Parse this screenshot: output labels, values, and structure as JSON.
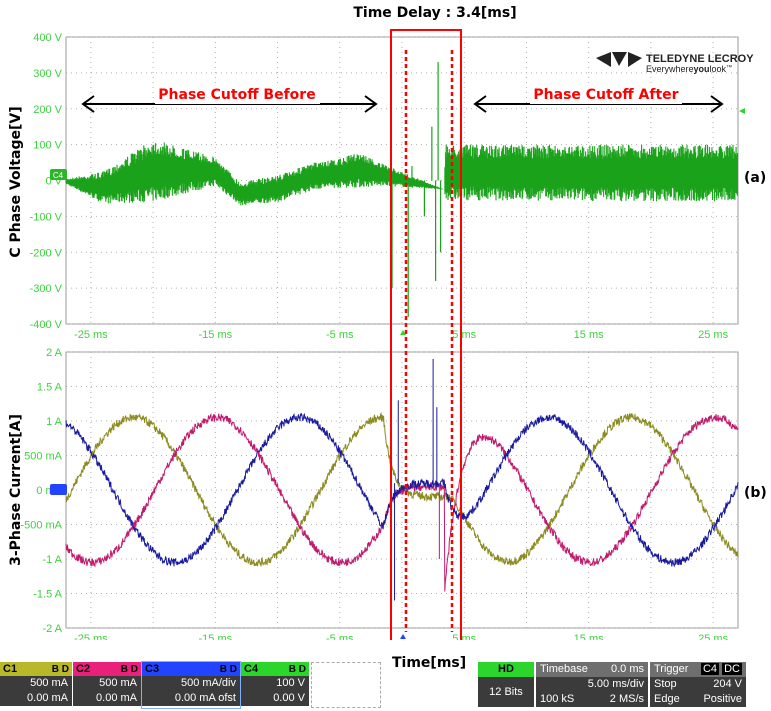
{
  "page_title": "Time Delay : 3.4[ms]",
  "colors": {
    "voltage": "#1aa31a",
    "c1": "#8b8b1f",
    "c2": "#c01a6e",
    "c3": "#1a1a9e",
    "grid": "#b0b0b0",
    "axis_label": "#3fd23f",
    "annot_red": "#ff0000"
  },
  "logo": {
    "name": "TELEDYNE LECROY",
    "tagline_pre": "Everywhere",
    "tagline_bold": "you",
    "tagline_post": "look",
    "tm": "™"
  },
  "annotations": {
    "before": "Phase Cutoff Before",
    "after": "Phase Cutoff After",
    "label_a": "(a)",
    "label_b": "(b)",
    "xlabel": "Time[ms]"
  },
  "chart_data": [
    {
      "type": "line",
      "title": "",
      "ylabel": "C Phase Voltage[V]",
      "xlabel": "",
      "xlim": [
        -27,
        27
      ],
      "ylim": [
        -400,
        400
      ],
      "xticks": [
        "-25 ms",
        "-15 ms",
        "-5 ms",
        "5 ms",
        "15 ms",
        "25 ms"
      ],
      "xtick_values": [
        -25,
        -15,
        -5,
        5,
        15,
        25
      ],
      "yticks": [
        "400 V",
        "300 V",
        "200 V",
        "100 V",
        "0 V",
        "-100 V",
        "-200 V",
        "-300 V",
        "-400 V"
      ],
      "ytick_values": [
        400,
        300,
        200,
        100,
        0,
        -100,
        -200,
        -300,
        -400
      ],
      "grid": true,
      "series": [
        {
          "name": "C4",
          "envelope": [
            {
              "x": -27,
              "hi": 5,
              "lo": -10
            },
            {
              "x": -24,
              "hi": 25,
              "lo": -65
            },
            {
              "x": -20,
              "hi": 115,
              "lo": -60
            },
            {
              "x": -15,
              "hi": 65,
              "lo": -15
            },
            {
              "x": -13,
              "hi": -5,
              "lo": -70
            },
            {
              "x": -10,
              "hi": 15,
              "lo": -60
            },
            {
              "x": -7,
              "hi": 50,
              "lo": -25
            },
            {
              "x": -5,
              "hi": 60,
              "lo": -20
            },
            {
              "x": -3.5,
              "hi": 80,
              "lo": -20
            },
            {
              "x": -1.5,
              "hi": 45,
              "lo": -15
            },
            {
              "x": 3.4,
              "hi": -25,
              "lo": -25
            },
            {
              "x": 3.5,
              "hi": 100,
              "lo": -55
            },
            {
              "x": 27,
              "hi": 100,
              "lo": -60
            }
          ]
        }
      ],
      "markers": {
        "trigger_level_V": 204,
        "zero_label": "C4"
      }
    },
    {
      "type": "line",
      "title": "",
      "ylabel": "3-Phase Current[A]",
      "xlabel": "Time[ms]",
      "xlim": [
        -27,
        27
      ],
      "ylim": [
        -2,
        2
      ],
      "xticks": [
        "-25 ms",
        "-15 ms",
        "-5 ms",
        "5 ms",
        "15 ms",
        "25 ms"
      ],
      "xtick_values": [
        -25,
        -15,
        -5,
        5,
        15,
        25
      ],
      "yticks": [
        "2 A",
        "1.5 A",
        "1 A",
        "500 mA",
        "0 mA",
        "-500 mA",
        "-1 A",
        "-1.5 A",
        "-2 A"
      ],
      "ytick_values": [
        2,
        1.5,
        1,
        0.5,
        0,
        -0.5,
        -1,
        -1.5,
        -2
      ],
      "grid": true,
      "series": [
        {
          "name": "C1",
          "amplitude_A": 1.05,
          "period_ms": 20,
          "phase_deg": 118
        },
        {
          "name": "C2",
          "amplitude_A": 1.05,
          "period_ms": 20,
          "phase_deg": -2
        },
        {
          "name": "C3",
          "amplitude_A": 1.05,
          "period_ms": 20,
          "phase_deg": -122
        }
      ],
      "cutoff_start_ms": -1.5,
      "cutoff_end_ms": 3.4,
      "markers": {
        "zero_label": "C3"
      }
    }
  ],
  "channels": [
    {
      "id": "C1",
      "bd": "B D",
      "scale": "500 mA",
      "offset": "0.00 mA"
    },
    {
      "id": "C2",
      "bd": "B D",
      "scale": "500 mA",
      "offset": "0.00 mA"
    },
    {
      "id": "C3",
      "bd": "B D",
      "scale": "500 mA/div",
      "offset": "0.00 mA ofst"
    },
    {
      "id": "C4",
      "bd": "B D",
      "scale": "100 V",
      "offset": "0.00 V"
    }
  ],
  "hd": {
    "label": "HD",
    "bits": "12 Bits"
  },
  "timebase": {
    "label": "Timebase",
    "delay": "0.0 ms",
    "div": "5.00 ms/div",
    "points": "100 kS",
    "rate": "2 MS/s"
  },
  "trigger": {
    "label": "Trigger",
    "src": "C4",
    "coupling": "DC",
    "mode": "Stop",
    "level": "204 V",
    "type": "Edge",
    "slope": "Positive"
  }
}
